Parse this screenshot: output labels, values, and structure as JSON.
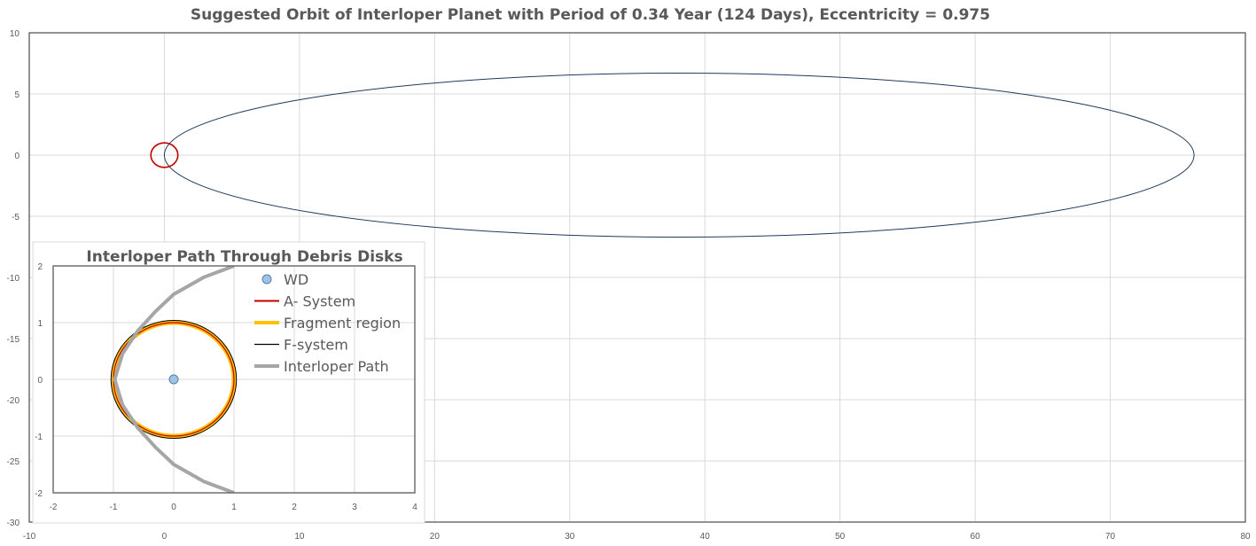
{
  "chart_data": [
    {
      "type": "line",
      "title": "Suggested Orbit of Interloper Planet with Period of 0.34 Year (124 Days), Eccentricity = 0.975",
      "xlim": [
        -10,
        80
      ],
      "ylim": [
        -30,
        10
      ],
      "x_ticks": [
        -10,
        0,
        10,
        20,
        30,
        40,
        50,
        60,
        70,
        80
      ],
      "y_ticks": [
        10,
        5,
        0,
        -5,
        -10,
        -15,
        -20,
        -25,
        -30
      ],
      "grid": true,
      "series": [
        {
          "role": "orbit",
          "kind": "ellipse",
          "cx": 38.1,
          "cy": 0,
          "rx": 38.1,
          "ry": 6.7,
          "color": "#1f3a5a"
        },
        {
          "role": "debris-circle",
          "kind": "circle",
          "cx": 0,
          "cy": 0,
          "r": 1,
          "color": "#c00000"
        }
      ]
    },
    {
      "type": "line",
      "title": "Interloper Path Through Debris Disks",
      "xlim": [
        -2,
        4
      ],
      "ylim": [
        -2,
        2
      ],
      "x_ticks": [
        -2,
        -1,
        0,
        1,
        2,
        3,
        4
      ],
      "y_ticks": [
        2,
        1,
        0,
        -1,
        -2
      ],
      "grid": true,
      "legend_position": "top-right",
      "series": [
        {
          "name": "WD",
          "kind": "point",
          "x": 0,
          "y": 0,
          "color": "#9dc3e6"
        },
        {
          "name": "A- System",
          "kind": "circle",
          "cx": 0,
          "cy": 0,
          "r": 1,
          "color": "#c00000"
        },
        {
          "name": "Fragment region",
          "kind": "circle",
          "cx": 0,
          "cy": 0,
          "r": 1,
          "color": "#ffc000"
        },
        {
          "name": "F-system",
          "kind": "circle",
          "cx": 0,
          "cy": 0,
          "r": 1.04,
          "color": "#000000"
        },
        {
          "name": "Interloper Path",
          "kind": "path",
          "color": "#a6a6a6",
          "x": [
            1,
            0.5,
            0,
            -0.3,
            -0.6,
            -0.85,
            -0.98,
            -0.85,
            -0.6,
            -0.3,
            0,
            0.5,
            1
          ],
          "y": [
            2,
            1.8,
            1.5,
            1.2,
            0.85,
            0.45,
            0,
            -0.45,
            -0.85,
            -1.2,
            -1.5,
            -1.8,
            -2
          ]
        }
      ]
    }
  ]
}
